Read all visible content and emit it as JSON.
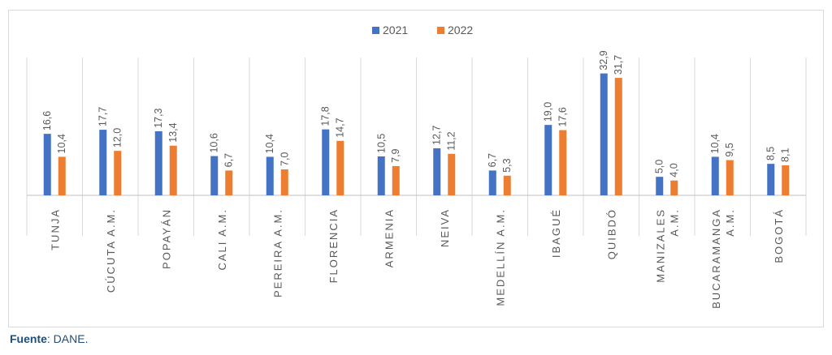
{
  "chart_data": {
    "type": "bar",
    "categories": [
      [
        "TUNJA"
      ],
      [
        "CÚCUTA A.M."
      ],
      [
        "POPAYÁN"
      ],
      [
        "CALI A.M."
      ],
      [
        "PEREIRA A.M."
      ],
      [
        "FLORENCIA"
      ],
      [
        "ARMENIA"
      ],
      [
        "NEIVA"
      ],
      [
        "MEDELLÍN A.M."
      ],
      [
        "IBAGUÉ"
      ],
      [
        "QUIBDÓ"
      ],
      [
        "MANIZALES",
        "A.M."
      ],
      [
        "BUCARAMANGA",
        "A.M."
      ],
      [
        "BOGOTÁ"
      ]
    ],
    "series": [
      {
        "name": "2021",
        "color": "#4472c4",
        "values": [
          16.6,
          17.7,
          17.3,
          10.6,
          10.4,
          17.8,
          10.5,
          12.7,
          6.7,
          19.0,
          32.9,
          5.0,
          10.4,
          8.5
        ],
        "labels": [
          "16,6",
          "17,7",
          "17,3",
          "10,6",
          "10,4",
          "17,8",
          "10,5",
          "12,7",
          "6,7",
          "19,0",
          "32,9",
          "5,0",
          "10,4",
          "8,5"
        ]
      },
      {
        "name": "2022",
        "color": "#ed7d31",
        "values": [
          10.4,
          12.0,
          13.4,
          6.7,
          7.0,
          14.7,
          7.9,
          11.2,
          5.3,
          17.6,
          31.7,
          4.0,
          9.5,
          8.1
        ],
        "labels": [
          "10,4",
          "12,0",
          "13,4",
          "6,7",
          "7,0",
          "14,7",
          "7,9",
          "11,2",
          "5,3",
          "17,6",
          "31,7",
          "4,0",
          "9,5",
          "8,1"
        ]
      }
    ],
    "ylim": [
      0,
      35
    ],
    "legend": "top-center",
    "grid": "vertical-category-dividers"
  },
  "source": {
    "label": "Fuente",
    "text": ": DANE."
  }
}
